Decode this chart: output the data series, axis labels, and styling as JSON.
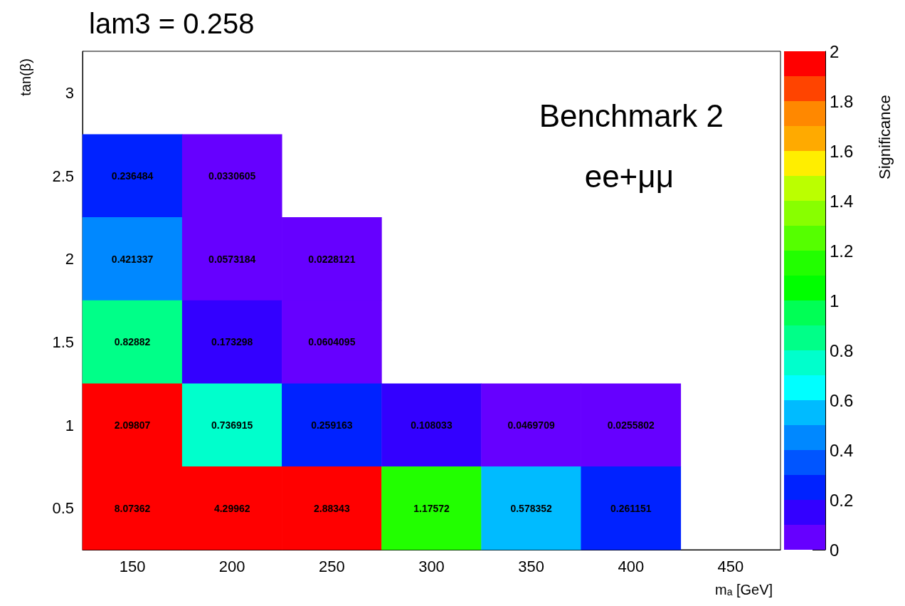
{
  "chart_data": {
    "type": "heatmap",
    "title": "lam3 = 0.258",
    "xlabel": "m$_{a}$ [GeV]",
    "ylabel": "tan(β)",
    "clabel": "Significance",
    "annotations": [
      "Benchmark 2",
      "ee+μμ"
    ],
    "categories": [
      "150",
      "200",
      "250",
      "300",
      "350",
      "400",
      "450"
    ],
    "y_categories": [
      "3",
      "2.5",
      "2",
      "1.5",
      "1",
      "0.5"
    ],
    "cells": [
      [
        null,
        null,
        null,
        null,
        null,
        null,
        null
      ],
      [
        0.236484,
        0.0330605,
        null,
        null,
        null,
        null,
        null
      ],
      [
        0.421337,
        0.0573184,
        0.0228121,
        null,
        null,
        null,
        null
      ],
      [
        0.82882,
        0.173298,
        0.0604095,
        null,
        null,
        null,
        null
      ],
      [
        2.09807,
        0.736915,
        0.259163,
        0.108033,
        0.0469709,
        0.0255802,
        null
      ],
      [
        8.07362,
        4.29962,
        2.88343,
        1.17572,
        0.578352,
        0.261151,
        null
      ]
    ],
    "data_labels": true,
    "clim": [
      0,
      2
    ],
    "cticks": [
      0,
      0.2,
      0.4,
      0.6,
      0.8,
      1,
      1.2,
      1.4,
      1.6,
      1.8,
      2
    ],
    "colors": [
      "#6600ff",
      "#3300ff",
      "#0022ff",
      "#0055ff",
      "#0088ff",
      "#00bbff",
      "#00ffff",
      "#00ffcc",
      "#00ff88",
      "#00ff55",
      "#00ff00",
      "#22ff00",
      "#55ff00",
      "#88ff00",
      "#bbff00",
      "#ffee00",
      "#ffaa00",
      "#ff8800",
      "#ff4400",
      "#ff0000"
    ]
  }
}
